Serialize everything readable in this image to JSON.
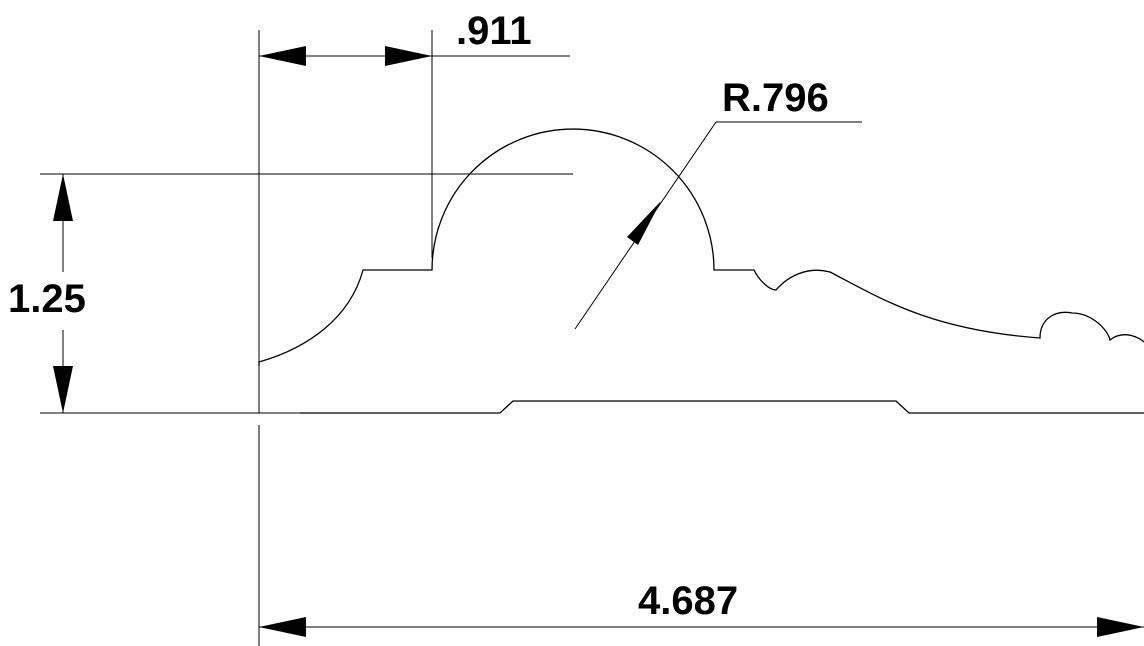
{
  "dimensions": {
    "top_width": ".911",
    "radius": "R.796",
    "height": "1.25",
    "overall_width": "4.687"
  },
  "colors": {
    "line": "#000000",
    "background": "#ffffff"
  }
}
